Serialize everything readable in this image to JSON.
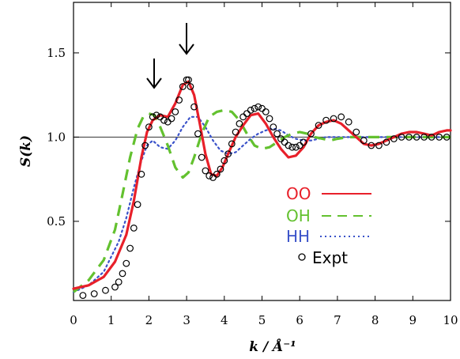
{
  "chart_data": {
    "type": "line",
    "xlabel": "k / Å⁻¹",
    "ylabel": "S(k)",
    "xlim": [
      0,
      10
    ],
    "ylim": [
      0.03,
      1.8
    ],
    "x_ticks": [
      "0",
      "1",
      "2",
      "3",
      "4",
      "5",
      "6",
      "7",
      "8",
      "9",
      "10"
    ],
    "y_ticks": [
      "0.5",
      "1.0",
      "1.5"
    ],
    "reference_line": 1.0,
    "arrows_at_k": [
      2.2,
      3.05
    ],
    "legend_position": "lower-right",
    "series": [
      {
        "name": "OO",
        "color": "#e8202a",
        "style": "solid",
        "x": [
          0,
          0.4,
          0.8,
          1.1,
          1.4,
          1.6,
          1.8,
          1.95,
          2.1,
          2.3,
          2.5,
          2.7,
          2.9,
          3.05,
          3.2,
          3.35,
          3.5,
          3.65,
          3.8,
          3.95,
          4.1,
          4.3,
          4.5,
          4.7,
          4.9,
          5.1,
          5.3,
          5.5,
          5.7,
          5.9,
          6.1,
          6.3,
          6.5,
          6.7,
          6.9,
          7.1,
          7.3,
          7.5,
          7.7,
          7.9,
          8.1,
          8.3,
          8.5,
          8.7,
          8.9,
          9.1,
          9.3,
          9.5,
          9.7,
          9.9,
          10
        ],
        "y": [
          0.1,
          0.12,
          0.17,
          0.26,
          0.42,
          0.62,
          0.88,
          1.03,
          1.1,
          1.13,
          1.12,
          1.2,
          1.31,
          1.33,
          1.25,
          1.08,
          0.9,
          0.78,
          0.77,
          0.82,
          0.9,
          1.0,
          1.07,
          1.13,
          1.14,
          1.08,
          1.0,
          0.93,
          0.88,
          0.89,
          0.94,
          1.02,
          1.07,
          1.09,
          1.1,
          1.08,
          1.04,
          1.0,
          0.96,
          0.95,
          0.96,
          0.98,
          1.0,
          1.02,
          1.03,
          1.03,
          1.02,
          1.01,
          1.03,
          1.04,
          1.04
        ]
      },
      {
        "name": "OH",
        "color": "#63c12f",
        "style": "dashed",
        "x": [
          0,
          0.4,
          0.8,
          1.1,
          1.3,
          1.5,
          1.7,
          1.85,
          2.0,
          2.15,
          2.3,
          2.5,
          2.7,
          2.9,
          3.05,
          3.2,
          3.4,
          3.6,
          3.8,
          4.0,
          4.2,
          4.4,
          4.6,
          4.8,
          5.0,
          5.2,
          5.4,
          5.6,
          5.8,
          6.0,
          6.2,
          6.4,
          6.6,
          6.8,
          7.0,
          7.3,
          7.6,
          8.0,
          8.4,
          8.8,
          9.2,
          9.6,
          10
        ],
        "y": [
          0.08,
          0.15,
          0.27,
          0.45,
          0.66,
          0.88,
          1.05,
          1.12,
          1.14,
          1.13,
          1.06,
          0.95,
          0.82,
          0.76,
          0.79,
          0.88,
          1.02,
          1.12,
          1.15,
          1.16,
          1.15,
          1.1,
          1.02,
          0.95,
          0.93,
          0.94,
          0.97,
          1.0,
          1.02,
          1.03,
          1.02,
          1.0,
          0.99,
          0.98,
          0.99,
          1.0,
          1.0,
          1.0,
          1.0,
          1.0,
          1.0,
          1.0,
          1.0
        ]
      },
      {
        "name": "HH",
        "color": "#3a52c9",
        "style": "dotted",
        "x": [
          0,
          0.4,
          0.8,
          1.2,
          1.4,
          1.6,
          1.8,
          1.95,
          2.1,
          2.3,
          2.5,
          2.7,
          2.9,
          3.1,
          3.3,
          3.5,
          3.7,
          3.9,
          4.1,
          4.3,
          4.5,
          4.7,
          4.9,
          5.1,
          5.3,
          5.5,
          5.7,
          5.9,
          6.1,
          6.3,
          6.5,
          6.7,
          6.9,
          7.1,
          7.4,
          7.7,
          8.0,
          8.5,
          9.0,
          9.5,
          10
        ],
        "y": [
          0.08,
          0.12,
          0.2,
          0.38,
          0.52,
          0.7,
          0.86,
          0.95,
          0.98,
          0.94,
          0.93,
          0.98,
          1.06,
          1.12,
          1.12,
          1.06,
          0.98,
          0.92,
          0.9,
          0.91,
          0.95,
          0.99,
          1.02,
          1.04,
          1.05,
          1.04,
          1.01,
          0.99,
          0.98,
          0.98,
          0.99,
          1.0,
          1.0,
          1.0,
          1.0,
          1.0,
          1.0,
          1.0,
          1.0,
          1.0,
          1.0
        ]
      },
      {
        "name": "Expt",
        "color": "#000000",
        "style": "markers",
        "x": [
          0.25,
          0.55,
          0.85,
          1.1,
          1.2,
          1.3,
          1.4,
          1.5,
          1.6,
          1.7,
          1.8,
          1.9,
          2.0,
          2.1,
          2.2,
          2.3,
          2.4,
          2.5,
          2.6,
          2.7,
          2.8,
          2.9,
          3.0,
          3.05,
          3.1,
          3.2,
          3.3,
          3.4,
          3.5,
          3.6,
          3.7,
          3.8,
          3.9,
          4.0,
          4.1,
          4.2,
          4.3,
          4.4,
          4.5,
          4.6,
          4.7,
          4.8,
          4.9,
          5.0,
          5.1,
          5.2,
          5.3,
          5.4,
          5.5,
          5.6,
          5.7,
          5.8,
          5.9,
          6.0,
          6.1,
          6.3,
          6.5,
          6.7,
          6.9,
          7.1,
          7.3,
          7.5,
          7.7,
          7.9,
          8.1,
          8.3,
          8.5,
          8.7,
          8.9,
          9.1,
          9.3,
          9.5,
          9.7,
          9.9
        ],
        "y": [
          0.06,
          0.07,
          0.09,
          0.11,
          0.14,
          0.19,
          0.25,
          0.34,
          0.46,
          0.6,
          0.78,
          0.95,
          1.06,
          1.12,
          1.13,
          1.12,
          1.1,
          1.09,
          1.11,
          1.15,
          1.22,
          1.3,
          1.34,
          1.34,
          1.3,
          1.18,
          1.02,
          0.88,
          0.8,
          0.77,
          0.76,
          0.78,
          0.81,
          0.86,
          0.9,
          0.96,
          1.03,
          1.08,
          1.12,
          1.14,
          1.16,
          1.17,
          1.18,
          1.17,
          1.15,
          1.11,
          1.06,
          1.02,
          0.99,
          0.97,
          0.95,
          0.94,
          0.94,
          0.95,
          0.97,
          1.02,
          1.07,
          1.1,
          1.11,
          1.12,
          1.09,
          1.03,
          0.98,
          0.95,
          0.95,
          0.97,
          0.99,
          1.0,
          1.0,
          1.0,
          1.0,
          1.0,
          1.0,
          1.0
        ]
      }
    ]
  }
}
